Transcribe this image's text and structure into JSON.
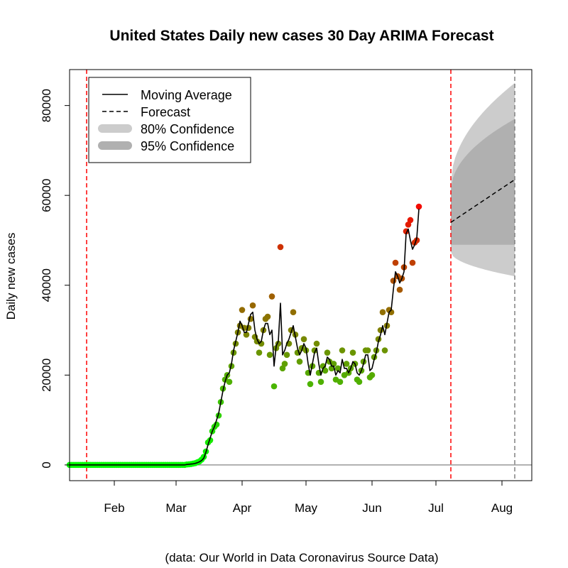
{
  "chart_data": {
    "type": "line",
    "title": "United States Daily new cases 30 Day ARIMA Forecast",
    "ylabel": "Daily new cases",
    "xlabel": "",
    "caption": "(data: Our World in Data Coronavirus Source Data)",
    "ylim": [
      -3500,
      88000
    ],
    "y_ticks": [
      0,
      20000,
      40000,
      60000,
      80000
    ],
    "x_ticks": [
      {
        "date": "2020-02-01",
        "label": "Feb"
      },
      {
        "date": "2020-03-01",
        "label": "Mar"
      },
      {
        "date": "2020-04-01",
        "label": "Apr"
      },
      {
        "date": "2020-05-01",
        "label": "May"
      },
      {
        "date": "2020-06-01",
        "label": "Jun"
      },
      {
        "date": "2020-07-01",
        "label": "Jul"
      },
      {
        "date": "2020-08-01",
        "label": "Aug"
      }
    ],
    "xlim": [
      "2020-01-11",
      "2020-08-15"
    ],
    "vlines": [
      {
        "date": "2020-01-19",
        "color": "#ff0000"
      },
      {
        "date": "2020-07-08",
        "color": "#ff0000"
      },
      {
        "date": "2020-08-07",
        "color": "#808080"
      }
    ],
    "zero_line": true,
    "legend": {
      "position": "top-left",
      "items": [
        {
          "label": "Moving Average",
          "style": "solid-line"
        },
        {
          "label": "Forecast",
          "style": "dashed-line"
        },
        {
          "label": "80% Confidence",
          "style": "band",
          "color": "#cccccc"
        },
        {
          "label": "95% Confidence",
          "style": "band",
          "color": "#b0b0b0"
        }
      ]
    },
    "points_start": "2020-01-11",
    "points": [
      0,
      0,
      0,
      0,
      0,
      0,
      0,
      0,
      0,
      0,
      0,
      0,
      0,
      0,
      0,
      0,
      0,
      0,
      0,
      0,
      0,
      0,
      0,
      0,
      0,
      0,
      0,
      0,
      0,
      0,
      0,
      0,
      0,
      0,
      0,
      0,
      0,
      0,
      0,
      0,
      0,
      0,
      0,
      0,
      0,
      0,
      0,
      0,
      0,
      0,
      0,
      0,
      0,
      0,
      0,
      100,
      150,
      200,
      300,
      400,
      600,
      800,
      1200,
      1800,
      3000,
      5000,
      5500,
      7500,
      8500,
      9000,
      11000,
      14000,
      17000,
      19000,
      20000,
      18500,
      22000,
      25000,
      27000,
      29500,
      31000,
      34500,
      30500,
      29000,
      30500,
      32500,
      35500,
      28500,
      27500,
      25000,
      27000,
      30000,
      32500,
      33000,
      24500,
      37500,
      17500,
      26000,
      27000,
      48500,
      21500,
      22500,
      24500,
      27000,
      30000,
      34000,
      29000,
      25000,
      23000,
      26000,
      28000,
      25500,
      20500,
      18000,
      22000,
      25500,
      27000,
      20500,
      18500,
      22000,
      21000,
      25000,
      23000,
      21500,
      22500,
      19000,
      21500,
      18500,
      25500,
      20000,
      22500,
      20500,
      21500,
      25000,
      22500,
      19000,
      18500,
      21000,
      23000,
      25500,
      25500,
      19500,
      20000,
      24000,
      25500,
      28000,
      30000,
      34000,
      25500,
      31000,
      34500,
      34000,
      41000,
      45000,
      42000,
      39000,
      41500,
      44000,
      52000,
      53500,
      54500,
      45000,
      49500,
      50000,
      57500
    ],
    "moving_average_start": "2020-01-11",
    "moving_average": [
      0,
      0,
      0,
      0,
      0,
      0,
      0,
      0,
      0,
      0,
      0,
      0,
      0,
      0,
      0,
      0,
      0,
      0,
      0,
      0,
      0,
      0,
      0,
      0,
      0,
      0,
      0,
      0,
      0,
      0,
      0,
      0,
      0,
      0,
      0,
      0,
      0,
      0,
      0,
      0,
      0,
      0,
      0,
      0,
      0,
      0,
      0,
      0,
      0,
      0,
      0,
      0,
      0,
      0,
      0,
      100,
      150,
      200,
      250,
      350,
      500,
      700,
      1000,
      1500,
      2800,
      4500,
      6000,
      7500,
      8500,
      10000,
      11500,
      14000,
      16500,
      18500,
      20000,
      20500,
      22500,
      25500,
      27500,
      29500,
      32000,
      31000,
      29500,
      29500,
      31500,
      33500,
      34000,
      30000,
      28000,
      27000,
      27500,
      30000,
      31500,
      31500,
      29000,
      30000,
      22000,
      26500,
      27500,
      36000,
      24500,
      25500,
      27000,
      28000,
      29500,
      31000,
      28500,
      26000,
      24500,
      25500,
      27000,
      26000,
      22500,
      20000,
      22500,
      25000,
      26000,
      22500,
      20000,
      21500,
      22000,
      24000,
      23500,
      22000,
      22000,
      20000,
      21000,
      20500,
      23500,
      21500,
      21500,
      20500,
      21500,
      23000,
      22500,
      20500,
      20000,
      21000,
      22500,
      24500,
      24500,
      21000,
      21500,
      23500,
      25000,
      27500,
      29000,
      31000,
      29000,
      31500,
      34000,
      34500,
      39000,
      43000,
      42000,
      40500,
      41500,
      43000,
      51500,
      52500,
      50000,
      48000,
      49000,
      50500,
      57000
    ],
    "forecast": {
      "start": "2020-07-08",
      "end": "2020-08-07",
      "mean": [
        54000,
        63500
      ],
      "lower80": [
        49000,
        49000
      ],
      "upper80": [
        61000,
        77000
      ],
      "lower95": [
        47500,
        42000
      ],
      "upper95": [
        62500,
        85000
      ]
    },
    "point_color_scale": {
      "low": "#00ff00",
      "high": "#ff0000",
      "min": 0,
      "max": 60000
    }
  }
}
